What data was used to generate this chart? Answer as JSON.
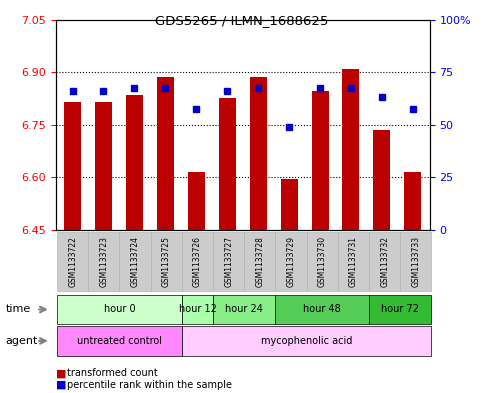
{
  "title": "GDS5265 / ILMN_1688625",
  "samples": [
    "GSM1133722",
    "GSM1133723",
    "GSM1133724",
    "GSM1133725",
    "GSM1133726",
    "GSM1133727",
    "GSM1133728",
    "GSM1133729",
    "GSM1133730",
    "GSM1133731",
    "GSM1133732",
    "GSM1133733"
  ],
  "bar_bottoms": [
    6.45,
    6.45,
    6.45,
    6.45,
    6.45,
    6.45,
    6.45,
    6.45,
    6.45,
    6.45,
    6.45,
    6.45
  ],
  "bar_tops": [
    6.815,
    6.815,
    6.835,
    6.885,
    6.615,
    6.825,
    6.885,
    6.595,
    6.845,
    6.91,
    6.735,
    6.615
  ],
  "blue_dots": [
    6.845,
    6.845,
    6.855,
    6.855,
    6.795,
    6.845,
    6.855,
    6.745,
    6.855,
    6.855,
    6.83,
    6.795
  ],
  "ylim_left": [
    6.45,
    7.05
  ],
  "ylim_right": [
    0,
    100
  ],
  "yticks_left": [
    6.45,
    6.6,
    6.75,
    6.9,
    7.05
  ],
  "yticks_right": [
    0,
    25,
    50,
    75,
    100
  ],
  "yticklabels_right": [
    "0",
    "25",
    "50",
    "75",
    "100%"
  ],
  "dotted_lines": [
    6.6,
    6.75,
    6.9
  ],
  "bar_color": "#bb0000",
  "dot_color": "#0000cc",
  "time_groups": [
    {
      "label": "hour 0",
      "start": 0,
      "end": 3,
      "color": "#ccffcc"
    },
    {
      "label": "hour 12",
      "start": 4,
      "end": 4,
      "color": "#aaffaa"
    },
    {
      "label": "hour 24",
      "start": 5,
      "end": 6,
      "color": "#88ee88"
    },
    {
      "label": "hour 48",
      "start": 7,
      "end": 9,
      "color": "#55cc55"
    },
    {
      "label": "hour 72",
      "start": 10,
      "end": 11,
      "color": "#33bb33"
    }
  ],
  "agent_groups": [
    {
      "label": "untreated control",
      "start": 0,
      "end": 3,
      "color": "#ff88ff"
    },
    {
      "label": "mycophenolic acid",
      "start": 4,
      "end": 11,
      "color": "#ffccff"
    }
  ],
  "legend_items": [
    {
      "label": "transformed count",
      "color": "#bb0000"
    },
    {
      "label": "percentile rank within the sample",
      "color": "#0000cc"
    }
  ]
}
